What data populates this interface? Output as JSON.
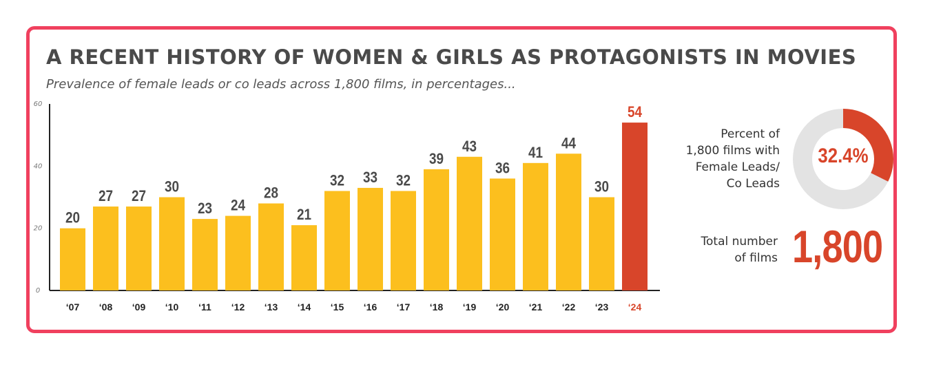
{
  "header": {
    "title": "A RECENT HISTORY OF WOMEN & GIRLS AS PROTAGONISTS IN MOVIES",
    "subtitle": "Prevalence of female leads or co leads across 1,800 films, in percentages..."
  },
  "colors": {
    "border": "#f0405e",
    "bar": "#fcbf1e",
    "highlight": "#d8452a",
    "donut_track": "#e3e3e3",
    "text": "#4a4a4a"
  },
  "chart_data": {
    "type": "bar",
    "categories": [
      "‘07",
      "‘08",
      "‘09",
      "‘10",
      "‘11",
      "‘12",
      "‘13",
      "‘14",
      "‘15",
      "‘16",
      "‘17",
      "‘18",
      "‘19",
      "‘20",
      "‘21",
      "‘22",
      "‘23",
      "‘24"
    ],
    "values": [
      20,
      27,
      27,
      30,
      23,
      24,
      28,
      21,
      32,
      33,
      32,
      39,
      43,
      36,
      41,
      44,
      30,
      54
    ],
    "highlight_index": 17,
    "ylim": [
      0,
      60
    ],
    "yticks": [
      0,
      20,
      40,
      60
    ],
    "grid": false,
    "legend": "none"
  },
  "summary": {
    "percent_label_lines": [
      "Percent of",
      "1,800 films with",
      "Female Leads/",
      "Co Leads"
    ],
    "percent_value": "32.4%",
    "percent_fraction": 0.324,
    "total_label_lines": [
      "Total number",
      "of films"
    ],
    "total_value": "1,800"
  }
}
